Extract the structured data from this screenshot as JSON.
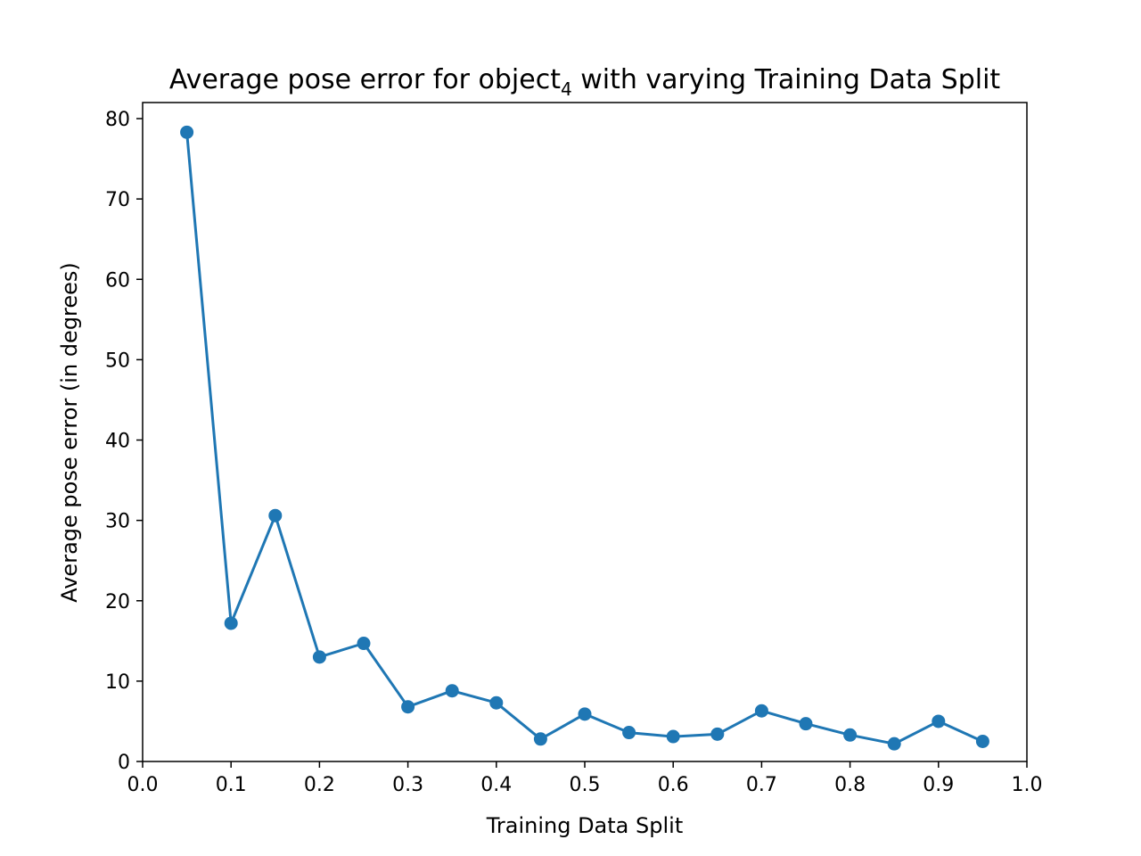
{
  "chart_data": {
    "type": "line",
    "title_main": "Average pose error for object",
    "title_subscript": "4",
    "title_rest": " with varying Training Data Split",
    "xlabel": "Training Data Split",
    "ylabel": "Average pose error (in degrees)",
    "xlim": [
      0.0,
      1.0
    ],
    "ylim": [
      0,
      82
    ],
    "x_ticks": [
      "0.0",
      "0.1",
      "0.2",
      "0.3",
      "0.4",
      "0.5",
      "0.6",
      "0.7",
      "0.8",
      "0.9",
      "1.0"
    ],
    "y_ticks": [
      "0",
      "10",
      "20",
      "30",
      "40",
      "50",
      "60",
      "70",
      "80"
    ],
    "grid": false,
    "color": "#1f77b4",
    "series": [
      {
        "x": [
          0.05,
          0.1,
          0.15,
          0.2,
          0.25,
          0.3,
          0.35,
          0.4,
          0.45,
          0.5,
          0.55,
          0.6,
          0.65,
          0.7,
          0.75,
          0.8,
          0.85,
          0.9,
          0.95
        ],
        "y": [
          78.3,
          17.2,
          30.6,
          13.0,
          14.7,
          6.8,
          8.8,
          7.3,
          2.8,
          5.9,
          3.6,
          3.1,
          3.4,
          6.3,
          4.7,
          3.3,
          2.2,
          5.0,
          2.5
        ]
      }
    ]
  }
}
